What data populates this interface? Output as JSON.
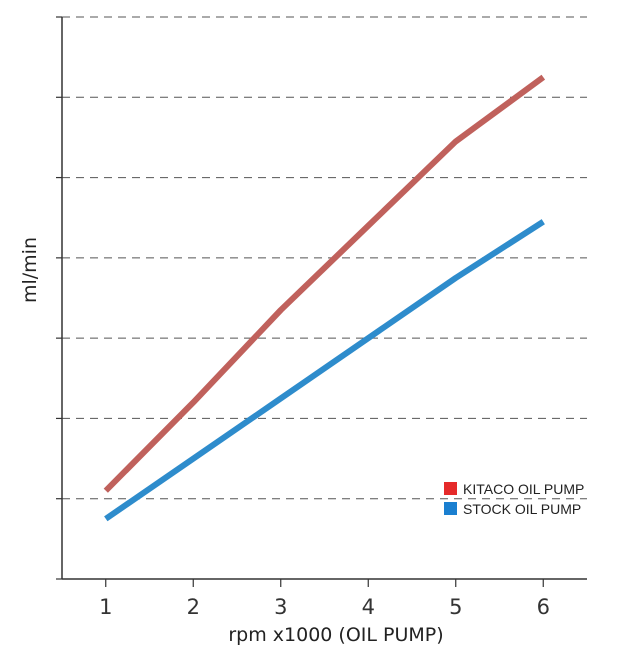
{
  "chart_data": {
    "type": "line",
    "title": "",
    "xlabel": "rpm x1000 (OIL PUMP)",
    "ylabel": "ml/min",
    "x": [
      1,
      2,
      3,
      4,
      5,
      6
    ],
    "xlim": [
      0.5,
      6.5
    ],
    "ylim": [
      0,
      7
    ],
    "grid": "horizontal-dashed",
    "legend_position": "bottom-right",
    "series": [
      {
        "name": "KITACO OIL PUMP",
        "color": "#c0615c",
        "values": [
          1.1,
          2.2,
          3.35,
          4.4,
          5.45,
          6.25
        ]
      },
      {
        "name": "STOCK OIL PUMP",
        "color": "#2e8ccc",
        "values": [
          0.75,
          1.5,
          2.25,
          3.0,
          3.75,
          4.45
        ]
      }
    ],
    "legend_marker_colors": [
      "#e52a2a",
      "#1a7fd0"
    ]
  }
}
